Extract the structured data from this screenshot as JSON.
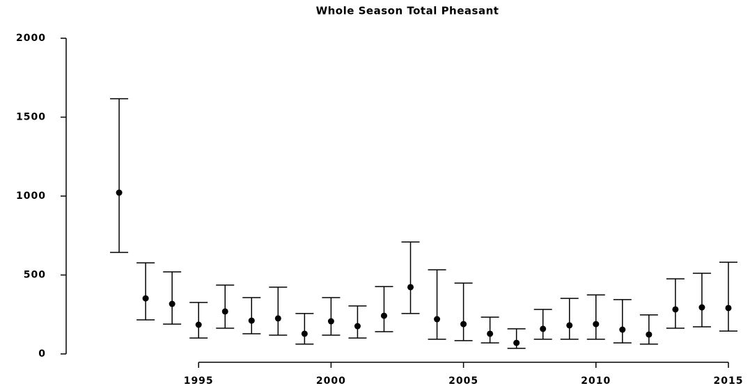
{
  "chart_data": {
    "type": "errorbar",
    "title": "Whole Season Total Pheasant",
    "x": [
      1992,
      1993,
      1994,
      1995,
      1996,
      1997,
      1998,
      1999,
      2000,
      2001,
      2002,
      2003,
      2004,
      2005,
      2006,
      2007,
      2008,
      2009,
      2010,
      2011,
      2012,
      2013,
      2014,
      2015
    ],
    "values": [
      1022,
      352,
      317,
      185,
      269,
      211,
      225,
      128,
      207,
      176,
      242,
      423,
      220,
      189,
      128,
      70,
      159,
      181,
      189,
      154,
      123,
      282,
      295,
      291
    ],
    "lower": [
      643,
      216,
      189,
      101,
      163,
      128,
      119,
      62,
      119,
      101,
      141,
      256,
      93,
      84,
      70,
      35,
      93,
      93,
      93,
      70,
      62,
      163,
      172,
      145
    ],
    "upper": [
      1617,
      577,
      520,
      326,
      436,
      357,
      423,
      256,
      357,
      304,
      427,
      709,
      533,
      449,
      233,
      159,
      282,
      352,
      374,
      344,
      247,
      476,
      511,
      581
    ],
    "color": "#000000",
    "xlim": [
      1990,
      2015.5
    ],
    "xticks": [
      1995,
      2000,
      2005,
      2010,
      2015
    ],
    "ylim": [
      0,
      2000
    ],
    "yticks": [
      0,
      500,
      1000,
      1500,
      2000
    ]
  }
}
